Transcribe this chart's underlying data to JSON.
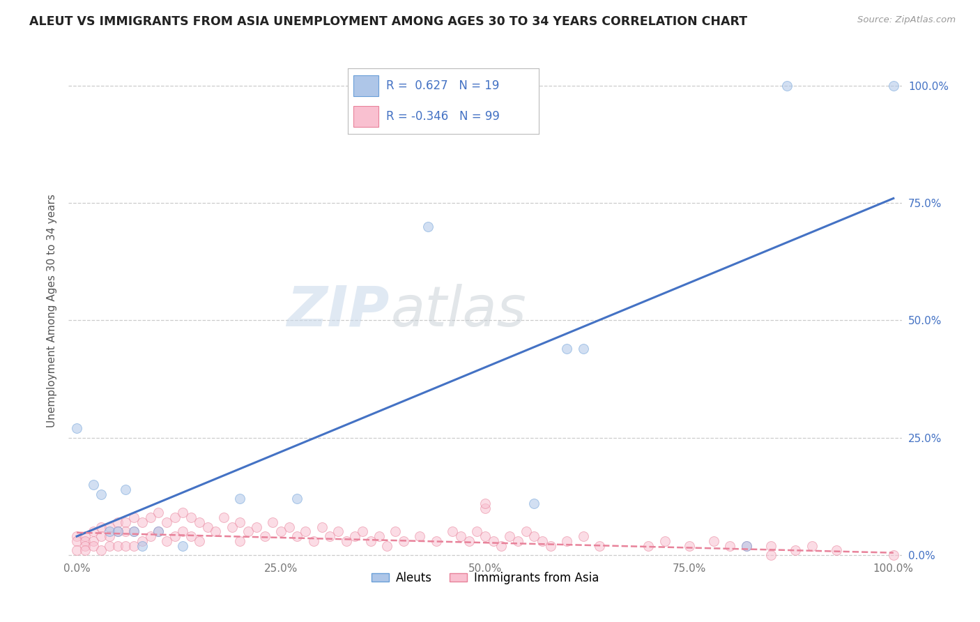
{
  "title": "ALEUT VS IMMIGRANTS FROM ASIA UNEMPLOYMENT AMONG AGES 30 TO 34 YEARS CORRELATION CHART",
  "source": "Source: ZipAtlas.com",
  "ylabel": "Unemployment Among Ages 30 to 34 years",
  "background_color": "#ffffff",
  "watermark_zip": "ZIP",
  "watermark_atlas": "atlas",
  "aleuts_R": 0.627,
  "aleuts_N": 19,
  "immigrants_R": -0.346,
  "immigrants_N": 99,
  "aleuts_color": "#aec6e8",
  "aleuts_edge_color": "#6a9fd8",
  "aleuts_line_color": "#4472c4",
  "immigrants_color": "#f9c0d0",
  "immigrants_edge_color": "#e8829a",
  "immigrants_line_color": "#e8829a",
  "aleuts_x": [
    0.0,
    0.02,
    0.03,
    0.04,
    0.05,
    0.06,
    0.07,
    0.08,
    0.1,
    0.13,
    0.2,
    0.27,
    0.43,
    0.56,
    0.6,
    0.62,
    0.82,
    0.87,
    1.0
  ],
  "aleuts_y": [
    0.27,
    0.15,
    0.13,
    0.05,
    0.05,
    0.14,
    0.05,
    0.02,
    0.05,
    0.02,
    0.12,
    0.12,
    0.7,
    0.11,
    0.44,
    0.44,
    0.02,
    1.0,
    1.0
  ],
  "immigrants_x": [
    0.0,
    0.0,
    0.0,
    0.01,
    0.01,
    0.01,
    0.01,
    0.02,
    0.02,
    0.02,
    0.03,
    0.03,
    0.03,
    0.04,
    0.04,
    0.04,
    0.05,
    0.05,
    0.05,
    0.06,
    0.06,
    0.06,
    0.07,
    0.07,
    0.07,
    0.08,
    0.08,
    0.09,
    0.09,
    0.1,
    0.1,
    0.11,
    0.11,
    0.12,
    0.12,
    0.13,
    0.13,
    0.14,
    0.14,
    0.15,
    0.15,
    0.16,
    0.17,
    0.18,
    0.19,
    0.2,
    0.2,
    0.21,
    0.22,
    0.23,
    0.24,
    0.25,
    0.26,
    0.27,
    0.28,
    0.29,
    0.3,
    0.31,
    0.32,
    0.33,
    0.34,
    0.35,
    0.36,
    0.37,
    0.38,
    0.39,
    0.4,
    0.42,
    0.44,
    0.46,
    0.47,
    0.48,
    0.49,
    0.5,
    0.5,
    0.51,
    0.52,
    0.53,
    0.54,
    0.55,
    0.56,
    0.57,
    0.58,
    0.6,
    0.62,
    0.64,
    0.7,
    0.72,
    0.75,
    0.78,
    0.8,
    0.82,
    0.85,
    0.88,
    0.9,
    0.93,
    0.85,
    1.0,
    0.5
  ],
  "immigrants_y": [
    0.04,
    0.03,
    0.01,
    0.04,
    0.03,
    0.02,
    0.01,
    0.05,
    0.03,
    0.02,
    0.06,
    0.04,
    0.01,
    0.06,
    0.04,
    0.02,
    0.07,
    0.05,
    0.02,
    0.07,
    0.05,
    0.02,
    0.08,
    0.05,
    0.02,
    0.07,
    0.03,
    0.08,
    0.04,
    0.09,
    0.05,
    0.07,
    0.03,
    0.08,
    0.04,
    0.09,
    0.05,
    0.08,
    0.04,
    0.07,
    0.03,
    0.06,
    0.05,
    0.08,
    0.06,
    0.07,
    0.03,
    0.05,
    0.06,
    0.04,
    0.07,
    0.05,
    0.06,
    0.04,
    0.05,
    0.03,
    0.06,
    0.04,
    0.05,
    0.03,
    0.04,
    0.05,
    0.03,
    0.04,
    0.02,
    0.05,
    0.03,
    0.04,
    0.03,
    0.05,
    0.04,
    0.03,
    0.05,
    0.04,
    0.1,
    0.03,
    0.02,
    0.04,
    0.03,
    0.05,
    0.04,
    0.03,
    0.02,
    0.03,
    0.04,
    0.02,
    0.02,
    0.03,
    0.02,
    0.03,
    0.02,
    0.02,
    0.02,
    0.01,
    0.02,
    0.01,
    0.0,
    0.0,
    0.11
  ],
  "aleuts_line_x": [
    0.0,
    1.0
  ],
  "aleuts_line_y": [
    0.04,
    0.76
  ],
  "immigrants_line_x": [
    0.0,
    1.0
  ],
  "immigrants_line_y": [
    0.048,
    0.005
  ],
  "xlim": [
    -0.01,
    1.01
  ],
  "ylim": [
    -0.01,
    1.05
  ],
  "xticks": [
    0.0,
    0.25,
    0.5,
    0.75,
    1.0
  ],
  "xtick_labels": [
    "0.0%",
    "25.0%",
    "50.0%",
    "75.0%",
    "100.0%"
  ],
  "right_ytick_vals": [
    0.0,
    0.25,
    0.5,
    0.75,
    1.0
  ],
  "right_ytick_labels": [
    "0.0%",
    "25.0%",
    "50.0%",
    "75.0%",
    "100.0%"
  ],
  "gridline_vals": [
    0.0,
    0.25,
    0.5,
    0.75,
    1.0
  ],
  "gridline_color": "#cccccc",
  "marker_size": 10,
  "scatter_alpha": 0.55,
  "title_color": "#222222",
  "source_color": "#999999",
  "ylabel_color": "#555555",
  "tick_color": "#777777"
}
